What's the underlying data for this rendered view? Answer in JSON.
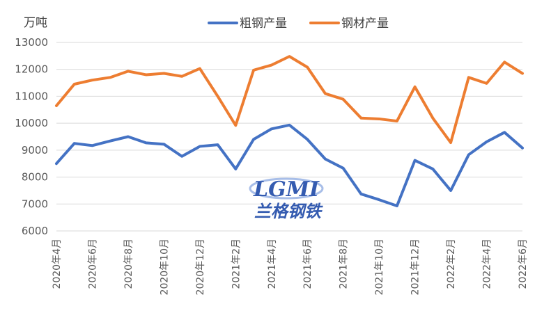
{
  "chart_data": {
    "type": "line",
    "ylabel": "万吨",
    "ylim": [
      6000,
      13000
    ],
    "yticks": [
      "6000",
      "7000",
      "8000",
      "9000",
      "10000",
      "11000",
      "12000",
      "13000"
    ],
    "grid": true,
    "legend_position": "top",
    "x": [
      "2020年4月",
      "2020年5月",
      "2020年6月",
      "2020年7月",
      "2020年8月",
      "2020年9月",
      "2020年10月",
      "2020年11月",
      "2020年12月",
      "2021年1月",
      "2021年2月",
      "2021年3月",
      "2021年4月",
      "2021年5月",
      "2021年6月",
      "2021年7月",
      "2021年8月",
      "2021年9月",
      "2021年10月",
      "2021年11月",
      "2021年12月",
      "2022年1月",
      "2022年2月",
      "2022年3月",
      "2022年4月",
      "2022年5月",
      "2022年6月"
    ],
    "xtick_labels": [
      "2020年4月",
      "2020年6月",
      "2020年8月",
      "2020年10月",
      "2020年12月",
      "2021年2月",
      "2021年4月",
      "2021年6月",
      "2021年8月",
      "2021年10月",
      "2021年12月",
      "2022年2月",
      "2022年4月",
      "2022年6月"
    ],
    "series": [
      {
        "name": "粗钢产量",
        "color": "#4472c4",
        "values": [
          8500,
          9250,
          9170,
          9340,
          9500,
          9270,
          9220,
          8770,
          9140,
          9200,
          8300,
          9400,
          9790,
          9930,
          9400,
          8670,
          8330,
          7370,
          7160,
          6930,
          8620,
          8300,
          7500,
          8830,
          9310,
          9660,
          9080
        ]
      },
      {
        "name": "钢材产量",
        "color": "#ed7d31",
        "values": [
          10650,
          11450,
          11600,
          11700,
          11930,
          11800,
          11850,
          11740,
          12030,
          11000,
          9920,
          11970,
          12160,
          12480,
          12080,
          11100,
          10890,
          10190,
          10160,
          10080,
          11350,
          10190,
          9280,
          11700,
          11480,
          12270,
          11850
        ]
      }
    ]
  },
  "watermark": {
    "logo_text": "LGMI",
    "brand_text": "兰格钢铁",
    "color": "#1f4aa8"
  }
}
